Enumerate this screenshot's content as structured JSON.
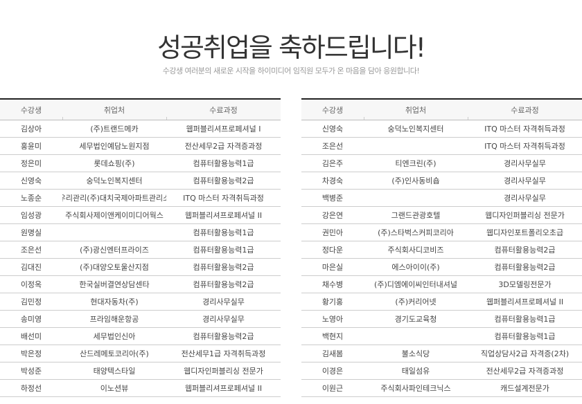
{
  "header": {
    "title": "성공취업을 축하드립니다!",
    "subtitle": "수강생 여러분의 새로운 시작을 하이미디어 임직원 모두가 온 마음을 담아 응원합니다!"
  },
  "columns": [
    "수강생",
    "취업처",
    "수료과정"
  ],
  "left_table": [
    [
      "김상아",
      "(주)트랜드메카",
      "웹퍼블리셔프로페셔널 I"
    ],
    [
      "홍윤미",
      "세무법인예담노원지점",
      "전산세무2급 자격증과정"
    ],
    [
      "정은미",
      "롯데쇼핑(주)",
      "컴퓨터활용능력1급"
    ],
    [
      "신영숙",
      "숭덕노인복지센터",
      "컴퓨터활용능력2급"
    ],
    [
      "노종순",
      "우리관리(주)대치국제아파트관리소",
      "ITQ 마스터 자격취득과정"
    ],
    [
      "임성광",
      "주식회사제이앤케이미디어웍스",
      "웹퍼블리셔프로페셔널 II"
    ],
    [
      "원명실",
      "",
      "컴퓨터활용능력1급"
    ],
    [
      "조은선",
      "(주)광신엔터프라이즈",
      "컴퓨터활용능력1급"
    ],
    [
      "김대진",
      "(주)대양오토울산지점",
      "컴퓨터활용능력2급"
    ],
    [
      "이정옥",
      "한국실버결연상담센타",
      "컴퓨터활용능력2급"
    ],
    [
      "김민정",
      "현대자동차(주)",
      "경리사무실무"
    ],
    [
      "송미영",
      "프라임해운항공",
      "경리사무실무"
    ],
    [
      "배선미",
      "세무법인신아",
      "컴퓨터활용능력2급"
    ],
    [
      "박은정",
      "산드레메토코리아(주)",
      "전산세무1급 자격취득과정"
    ],
    [
      "박성준",
      "태양텍스타일",
      "웹디자인퍼블리싱 전문가"
    ],
    [
      "하정선",
      "이노션뷰",
      "웹퍼블리셔프로페셔널 II"
    ]
  ],
  "right_table": [
    [
      "신영숙",
      "숭덕노인복지센터",
      "ITQ 마스터 자격취득과정"
    ],
    [
      "조은선",
      "",
      "ITQ 마스터 자격취득과정"
    ],
    [
      "김은주",
      "티엔크린(주)",
      "경리사무실무"
    ],
    [
      "차경숙",
      "(주)인사동비숍",
      "경리사무실무"
    ],
    [
      "백병준",
      "",
      "경리사무실무"
    ],
    [
      "강은연",
      "그랜드관광호텔",
      "웹디자인퍼블리싱 전문가"
    ],
    [
      "권민아",
      "(주)스타벅스커피코리아",
      "웹디자인포트폴리오초급"
    ],
    [
      "정다운",
      "주식회사디코비즈",
      "컴퓨터활용능력2급"
    ],
    [
      "마은실",
      "에스아이이(주)",
      "컴퓨터활용능력2급"
    ],
    [
      "채수병",
      "(주)디엠에이씨인터내셔널",
      "3D모델링전문가"
    ],
    [
      "황기홍",
      "(주)커리어넷",
      "웹퍼블리셔프로페셔널 II"
    ],
    [
      "노영아",
      "경기도교육청",
      "컴퓨터활용능력1급"
    ],
    [
      "백현지",
      "",
      "컴퓨터활용능력1급"
    ],
    [
      "김새봄",
      "불소식당",
      "직업상담사2급 자격증(2차)"
    ],
    [
      "이경은",
      "태일섬유",
      "전산세무2급 자격증과정"
    ],
    [
      "이원근",
      "주식회사파인테크닉스",
      "캐드설계전문가"
    ]
  ]
}
